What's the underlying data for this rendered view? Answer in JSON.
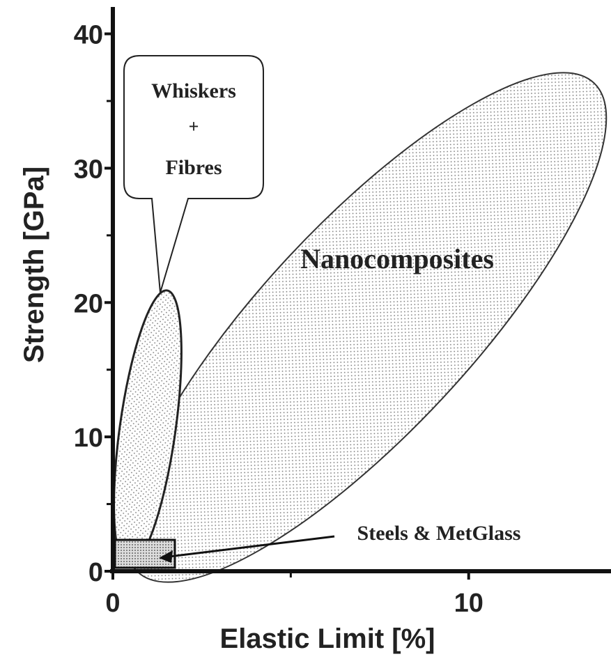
{
  "chart_data": {
    "type": "region",
    "xlabel": "Elastic Limit [%]",
    "ylabel": "Strength [GPa]",
    "xlim": [
      0,
      14
    ],
    "ylim": [
      0,
      42
    ],
    "xticks": [
      0,
      10
    ],
    "yticks": [
      0,
      10,
      20,
      30,
      40
    ],
    "minor_xticks": [
      5
    ],
    "minor_yticks": [
      5,
      15,
      25,
      35
    ],
    "annotations": [
      "Whiskers",
      "+",
      "Fibres",
      "Nanocomposites",
      "Steels & MetGlass"
    ]
  }
}
